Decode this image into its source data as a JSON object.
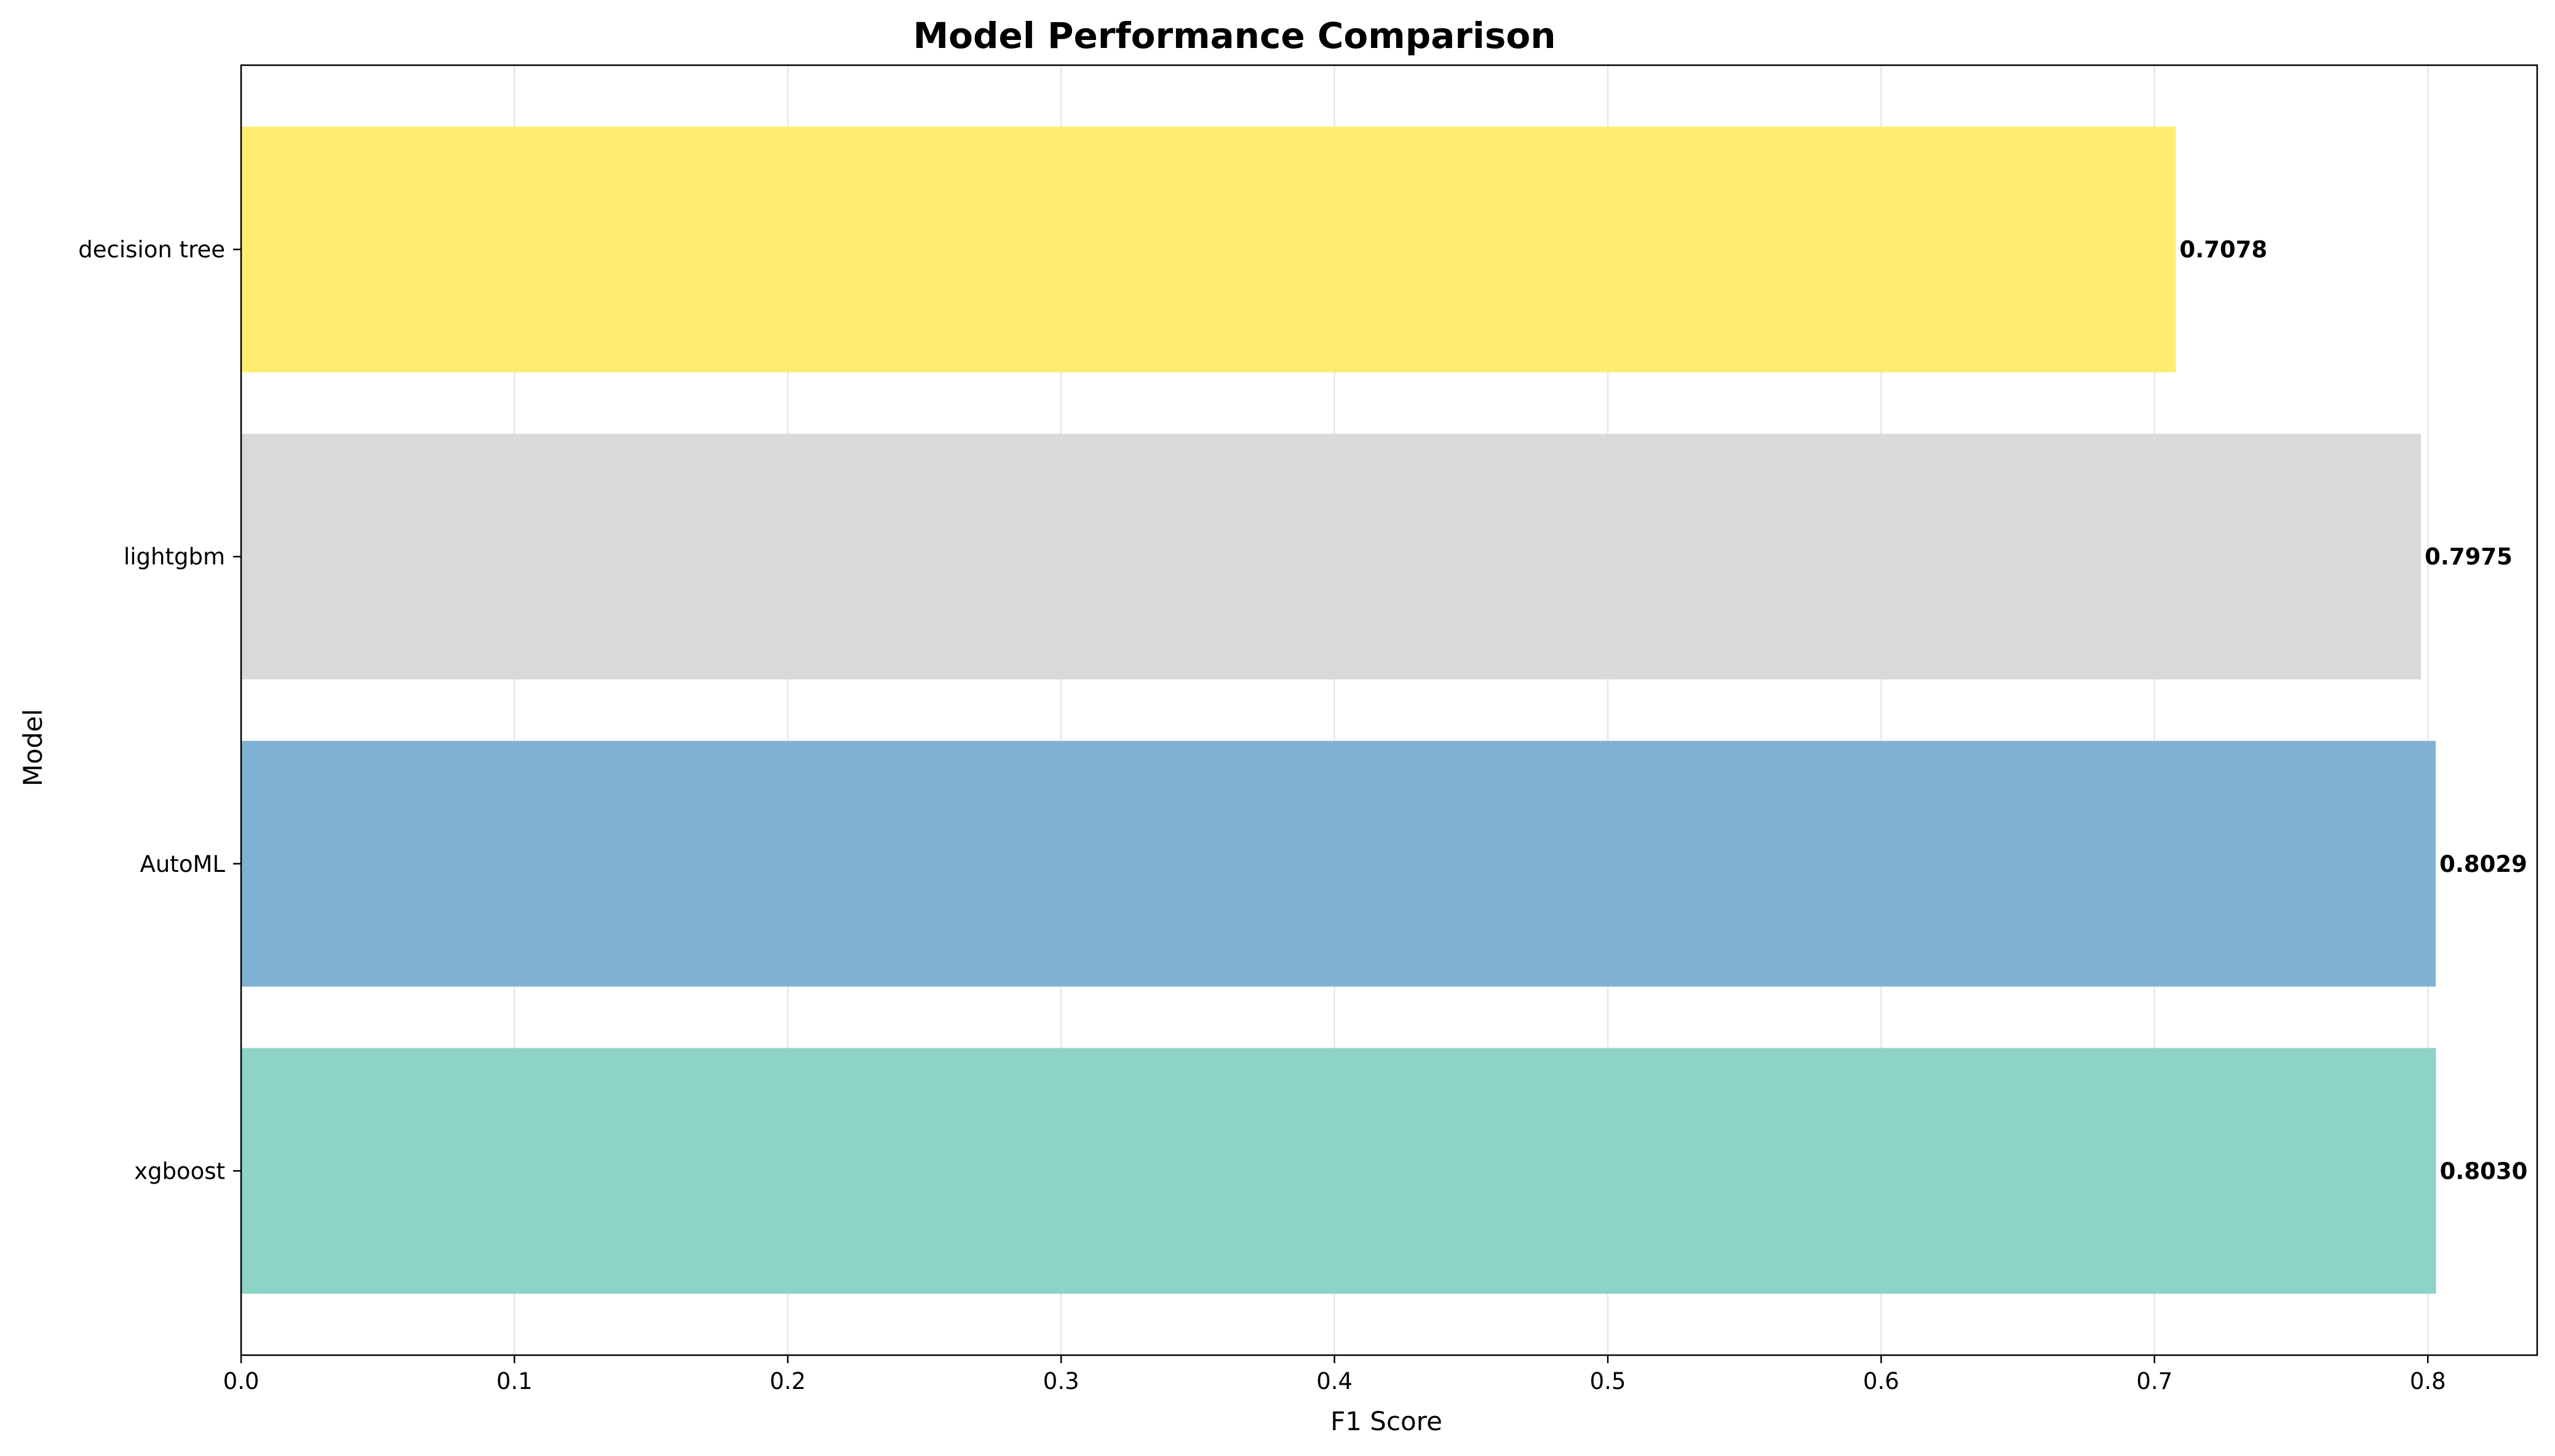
{
  "chart_data": {
    "type": "bar",
    "orientation": "horizontal",
    "title": "Model Performance Comparison",
    "xlabel": "F1 Score",
    "ylabel": "Model",
    "xlim": [
      0,
      0.84
    ],
    "xticks": [
      0.0,
      0.1,
      0.2,
      0.3,
      0.4,
      0.5,
      0.6,
      0.7,
      0.8
    ],
    "xtick_labels": [
      "0.0",
      "0.1",
      "0.2",
      "0.3",
      "0.4",
      "0.5",
      "0.6",
      "0.7",
      "0.8"
    ],
    "grid": "x-axis",
    "categories": [
      "xgboost",
      "AutoML",
      "lightgbm",
      "decision tree"
    ],
    "values": [
      0.803,
      0.8029,
      0.7975,
      0.7078
    ],
    "value_labels": [
      "0.8030",
      "0.8029",
      "0.7975",
      "0.7078"
    ],
    "colors": [
      "#8dd3c7",
      "#80b1d3",
      "#d9d9d9",
      "#ffed6f"
    ]
  }
}
